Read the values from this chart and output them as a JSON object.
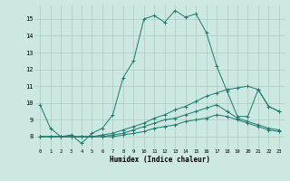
{
  "xlabel": "Humidex (Indice chaleur)",
  "background_color": "#cce8e0",
  "grid_color": "#aaccc4",
  "line_color": "#1a7a6e",
  "xlim": [
    -0.5,
    23.5
  ],
  "ylim": [
    7.3,
    15.8
  ],
  "yticks": [
    8,
    9,
    10,
    11,
    12,
    13,
    14,
    15
  ],
  "xticks": [
    0,
    1,
    2,
    3,
    4,
    5,
    6,
    7,
    8,
    9,
    10,
    11,
    12,
    13,
    14,
    15,
    16,
    17,
    18,
    19,
    20,
    21,
    22,
    23
  ],
  "series": [
    {
      "x": [
        0,
        1,
        2,
        3,
        4,
        5,
        6,
        7,
        8,
        9,
        10,
        11,
        12,
        13,
        14,
        15,
        16,
        17,
        18,
        19,
        20,
        21,
        22,
        23
      ],
      "y": [
        9.9,
        8.5,
        8.0,
        8.1,
        7.6,
        8.2,
        8.5,
        9.3,
        11.5,
        12.5,
        15.0,
        15.2,
        14.8,
        15.5,
        15.1,
        15.3,
        14.2,
        12.2,
        10.7,
        9.2,
        9.2,
        10.8,
        9.8,
        9.5
      ]
    },
    {
      "x": [
        0,
        1,
        2,
        3,
        4,
        5,
        6,
        7,
        8,
        9,
        10,
        11,
        12,
        13,
        14,
        15,
        16,
        17,
        18,
        19,
        20,
        21,
        22,
        23
      ],
      "y": [
        8.0,
        8.0,
        8.0,
        8.0,
        8.0,
        8.0,
        8.1,
        8.2,
        8.4,
        8.6,
        8.8,
        9.1,
        9.3,
        9.6,
        9.8,
        10.1,
        10.4,
        10.6,
        10.8,
        10.9,
        11.0,
        10.8,
        9.8,
        9.5
      ]
    },
    {
      "x": [
        0,
        1,
        2,
        3,
        4,
        5,
        6,
        7,
        8,
        9,
        10,
        11,
        12,
        13,
        14,
        15,
        16,
        17,
        18,
        19,
        20,
        21,
        22,
        23
      ],
      "y": [
        8.0,
        8.0,
        8.0,
        8.0,
        8.0,
        8.0,
        8.0,
        8.1,
        8.2,
        8.4,
        8.6,
        8.8,
        9.0,
        9.1,
        9.3,
        9.5,
        9.7,
        9.9,
        9.5,
        9.1,
        8.9,
        8.7,
        8.5,
        8.4
      ]
    },
    {
      "x": [
        0,
        1,
        2,
        3,
        4,
        5,
        6,
        7,
        8,
        9,
        10,
        11,
        12,
        13,
        14,
        15,
        16,
        17,
        18,
        19,
        20,
        21,
        22,
        23
      ],
      "y": [
        8.0,
        8.0,
        8.0,
        8.0,
        8.0,
        8.0,
        8.0,
        8.0,
        8.1,
        8.2,
        8.3,
        8.5,
        8.6,
        8.7,
        8.9,
        9.0,
        9.1,
        9.3,
        9.2,
        9.0,
        8.8,
        8.6,
        8.4,
        8.3
      ]
    }
  ]
}
